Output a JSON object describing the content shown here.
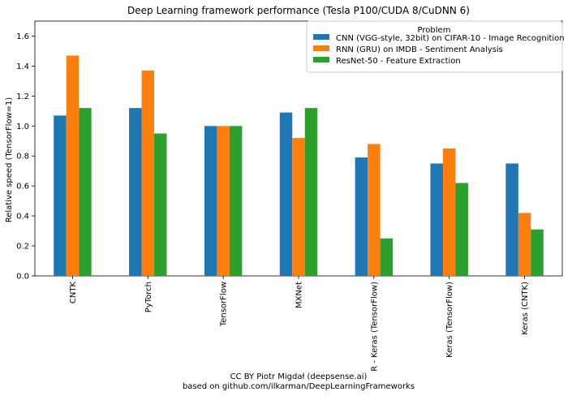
{
  "chart_data": {
    "type": "bar",
    "title": "Deep Learning framework performance (Tesla P100/CUDA 8/CuDNN 6)",
    "xlabel": "",
    "ylabel": "Relative speed (TensorFlow=1)",
    "ylim": [
      0,
      1.7
    ],
    "yticks": [
      0.0,
      0.2,
      0.4,
      0.6,
      0.8,
      1.0,
      1.2,
      1.4,
      1.6
    ],
    "categories": [
      "CNTK",
      "PyTorch",
      "TensorFlow",
      "MXNet",
      "R - Keras (TensorFlow)",
      "Keras (TensorFlow)",
      "Keras (CNTK)"
    ],
    "legend_title": "Problem",
    "legend_position": "top-right",
    "grid": false,
    "series": [
      {
        "name": "CNN (VGG-style, 32bit) on CIFAR-10 - Image Recognition",
        "color": "#1f77b4",
        "values": [
          1.07,
          1.12,
          1.0,
          1.09,
          0.79,
          0.75,
          0.75
        ]
      },
      {
        "name": "RNN (GRU) on IMDB - Sentiment Analysis",
        "color": "#ff7f0e",
        "values": [
          1.47,
          1.37,
          1.0,
          0.92,
          0.88,
          0.85,
          0.42
        ]
      },
      {
        "name": "ResNet-50 - Feature Extraction",
        "color": "#2ca02c",
        "values": [
          1.12,
          0.95,
          1.0,
          1.12,
          0.25,
          0.62,
          0.31
        ]
      }
    ]
  },
  "credits": {
    "line1": "CC BY Piotr Migdał (deepsense.ai)",
    "line2": "based on github.com/ilkarman/DeepLearningFrameworks"
  }
}
